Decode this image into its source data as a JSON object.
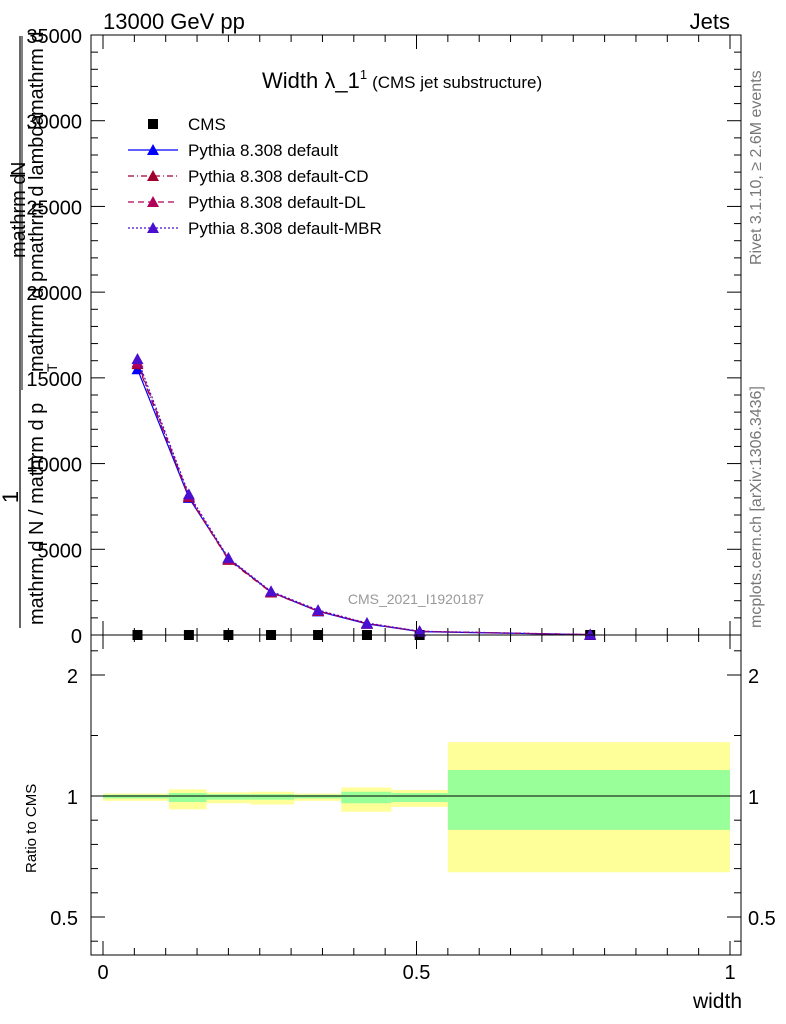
{
  "header": {
    "left": "13000 GeV pp",
    "right": "Jets"
  },
  "side_labels": {
    "rivet": "Rivet 3.1.10, ≥ 2.6M events",
    "mcplots": "mcplots.cern.ch [arXiv:1306.3436]"
  },
  "chart_data": [
    {
      "type": "line",
      "title_main": "Width λ_1",
      "title_sup": "1",
      "title_sub": "(CMS jet substructure)",
      "watermark": "CMS_2021_I1920187",
      "ylabel_top": "1",
      "ylabel_lines": [
        "mathrm d N / mathrm d p",
        "mathrm d p",
        "mathrm d lambda",
        "mathrm d",
        "T",
        "mathrm d",
        "N"
      ],
      "ylim": [
        0,
        35000
      ],
      "xlim": [
        0,
        1
      ],
      "yticks": [
        "0",
        "5000",
        "10000",
        "15000",
        "20000",
        "25000",
        "30000",
        "35000"
      ],
      "x": [
        0.055,
        0.137,
        0.2,
        0.268,
        0.343,
        0.421,
        0.505,
        0.777
      ],
      "series": [
        {
          "name": "CMS",
          "color": "#000000",
          "marker": "square",
          "values": [
            0,
            0,
            0,
            0,
            0,
            0,
            0,
            0
          ]
        },
        {
          "name": "Pythia 8.308 default",
          "color": "#0000ff",
          "marker": "triangle",
          "dash": "solid",
          "values": [
            15500,
            8000,
            4450,
            2500,
            1380,
            650,
            200,
            20
          ]
        },
        {
          "name": "Pythia 8.308 default-CD",
          "color": "#a1002e",
          "marker": "triangle",
          "dash": "dashdot",
          "values": [
            15800,
            8050,
            4380,
            2480,
            1400,
            670,
            210,
            22
          ]
        },
        {
          "name": "Pythia 8.308 default-DL",
          "color": "#b0005a",
          "marker": "triangle",
          "dash": "dash",
          "values": [
            15900,
            8100,
            4420,
            2520,
            1420,
            680,
            215,
            22
          ]
        },
        {
          "name": "Pythia 8.308 default-MBR",
          "color": "#4b0fcf",
          "marker": "triangle",
          "dash": "dot",
          "values": [
            16100,
            8200,
            4500,
            2550,
            1450,
            700,
            220,
            23
          ]
        }
      ]
    },
    {
      "type": "ratio",
      "ylabel": "Ratio to CMS",
      "xlabel": "width",
      "ylim": [
        0.3,
        2.3
      ],
      "yticks": [
        "0.5",
        "1",
        "2"
      ],
      "xticks": [
        "0",
        "0.5",
        "1"
      ],
      "bins": [
        {
          "lo": 0.0,
          "hi": 0.105,
          "green": [
            0.99,
            1.01
          ],
          "yellow": [
            0.98,
            1.02
          ]
        },
        {
          "lo": 0.105,
          "hi": 0.165,
          "green": [
            0.975,
            1.025
          ],
          "yellow": [
            0.945,
            1.055
          ]
        },
        {
          "lo": 0.165,
          "hi": 0.235,
          "green": [
            0.985,
            1.015
          ],
          "yellow": [
            0.97,
            1.03
          ]
        },
        {
          "lo": 0.235,
          "hi": 0.305,
          "green": [
            0.985,
            1.015
          ],
          "yellow": [
            0.965,
            1.035
          ]
        },
        {
          "lo": 0.305,
          "hi": 0.38,
          "green": [
            0.99,
            1.01
          ],
          "yellow": [
            0.98,
            1.02
          ]
        },
        {
          "lo": 0.38,
          "hi": 0.46,
          "green": [
            0.97,
            1.035
          ],
          "yellow": [
            0.935,
            1.07
          ]
        },
        {
          "lo": 0.46,
          "hi": 0.55,
          "green": [
            0.975,
            1.025
          ],
          "yellow": [
            0.955,
            1.05
          ]
        },
        {
          "lo": 0.55,
          "hi": 1.0,
          "green": [
            0.86,
            1.215
          ],
          "yellow": [
            0.685,
            1.445
          ]
        }
      ],
      "colors": {
        "green": "#99ff99",
        "yellow": "#ffff99"
      }
    }
  ]
}
